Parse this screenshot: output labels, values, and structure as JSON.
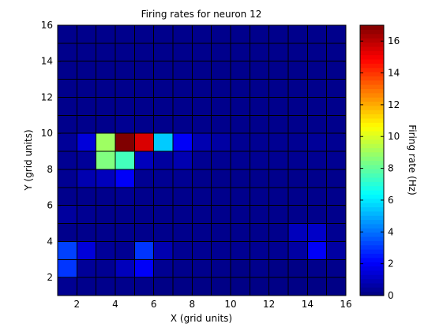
{
  "chart_data": {
    "type": "heatmap",
    "title": "Firing rates for neuron 12",
    "xlabel": "X (grid units)",
    "ylabel": "Y (grid units)",
    "colorbar_label": "Firing rate (Hz)",
    "colormap": "jet",
    "xlim": [
      1,
      16
    ],
    "ylim": [
      1,
      16
    ],
    "clim": [
      0,
      17
    ],
    "x_ticks": [
      2,
      4,
      6,
      8,
      10,
      12,
      14,
      16
    ],
    "y_ticks": [
      2,
      4,
      6,
      8,
      10,
      12,
      14,
      16
    ],
    "colorbar_ticks": [
      0,
      2,
      4,
      6,
      8,
      10,
      12,
      14,
      16
    ],
    "grid": true,
    "rows_note": "rows listed from y=1 (bottom) to y=15 (top); columns x=1..15",
    "values": [
      [
        0.3,
        0.2,
        0.2,
        0.2,
        0.2,
        0.1,
        0.1,
        0.1,
        0.1,
        0.1,
        0.1,
        0.1,
        0.1,
        0.1,
        0.1
      ],
      [
        3.0,
        0.4,
        0.3,
        1.0,
        2.0,
        0.3,
        0.2,
        0.2,
        0.2,
        0.1,
        0.2,
        0.1,
        0.1,
        0.2,
        0.2
      ],
      [
        3.2,
        1.5,
        0.4,
        0.3,
        3.0,
        0.8,
        0.3,
        0.3,
        0.3,
        0.3,
        0.3,
        0.3,
        0.6,
        2.0,
        0.6
      ],
      [
        0.2,
        0.2,
        0.2,
        0.2,
        0.2,
        0.2,
        0.2,
        0.2,
        0.2,
        0.2,
        0.2,
        0.2,
        1.0,
        1.2,
        0.3
      ],
      [
        0.5,
        0.3,
        0.2,
        0.2,
        0.2,
        0.2,
        0.2,
        0.2,
        0.2,
        0.2,
        0.2,
        0.2,
        0.2,
        0.2,
        0.2
      ],
      [
        0.2,
        0.2,
        0.2,
        0.3,
        0.2,
        0.2,
        0.2,
        0.2,
        0.2,
        0.2,
        0.2,
        0.2,
        0.2,
        0.2,
        0.2
      ],
      [
        0.3,
        0.8,
        1.0,
        2.0,
        0.3,
        0.3,
        0.3,
        0.2,
        0.2,
        0.2,
        0.2,
        0.2,
        0.2,
        0.2,
        0.2
      ],
      [
        0.3,
        0.4,
        8.5,
        7.5,
        1.0,
        0.5,
        0.8,
        0.3,
        0.3,
        0.3,
        0.3,
        0.3,
        0.3,
        0.3,
        0.3
      ],
      [
        0.4,
        1.5,
        9.0,
        17.0,
        15.5,
        5.5,
        2.0,
        0.8,
        0.6,
        0.3,
        0.3,
        0.3,
        0.3,
        0.4,
        0.3
      ],
      [
        0.2,
        0.2,
        0.2,
        0.3,
        0.2,
        0.2,
        0.2,
        0.2,
        0.2,
        0.2,
        0.2,
        0.2,
        0.2,
        0.2,
        0.2
      ],
      [
        0.2,
        0.2,
        0.2,
        0.2,
        0.2,
        0.2,
        0.2,
        0.2,
        0.2,
        0.2,
        0.2,
        0.2,
        0.2,
        0.2,
        0.2
      ],
      [
        0.2,
        0.2,
        0.2,
        0.2,
        0.2,
        0.2,
        0.2,
        0.2,
        0.2,
        0.2,
        0.2,
        0.2,
        0.2,
        0.2,
        0.2
      ],
      [
        0.2,
        0.2,
        0.2,
        0.2,
        0.2,
        0.2,
        0.2,
        0.2,
        0.2,
        0.2,
        0.2,
        0.2,
        0.2,
        0.2,
        0.2
      ],
      [
        0.2,
        0.2,
        0.2,
        0.2,
        0.2,
        0.2,
        0.2,
        0.2,
        0.2,
        0.2,
        0.2,
        0.2,
        0.2,
        0.2,
        0.2
      ],
      [
        0.2,
        0.2,
        0.2,
        0.2,
        0.2,
        0.2,
        0.2,
        0.2,
        0.2,
        0.2,
        0.2,
        0.2,
        0.2,
        0.2,
        0.2
      ]
    ]
  }
}
